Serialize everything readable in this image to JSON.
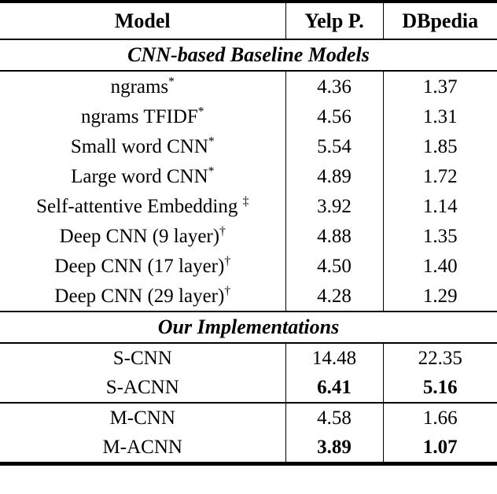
{
  "page": {
    "background_color": "#ffffff",
    "text_color": "#000000",
    "rule_color": "#000000"
  },
  "header": {
    "model": "Model",
    "yelp": "Yelp P.",
    "dbpedia": "DBpedia"
  },
  "sections": {
    "baselines": "CNN-based Baseline Models",
    "ours": "Our Implementations"
  },
  "rows": [
    {
      "model": "ngrams",
      "marker": "*",
      "yelp": "4.36",
      "dbpedia": "1.37",
      "bold_values": false
    },
    {
      "model": "ngrams TFIDF",
      "marker": "*",
      "yelp": "4.56",
      "dbpedia": "1.31",
      "bold_values": false
    },
    {
      "model": "Small word CNN",
      "marker": "*",
      "yelp": "5.54",
      "dbpedia": "1.85",
      "bold_values": false
    },
    {
      "model": "Large word CNN",
      "marker": "*",
      "yelp": "4.89",
      "dbpedia": "1.72",
      "bold_values": false
    },
    {
      "model": "Self-attentive Embedding ",
      "marker": "‡",
      "yelp": "3.92",
      "dbpedia": "1.14",
      "bold_values": false
    },
    {
      "model": "Deep CNN (9 layer)",
      "marker": "†",
      "yelp": "4.88",
      "dbpedia": "1.35",
      "bold_values": false
    },
    {
      "model": "Deep CNN (17 layer)",
      "marker": "†",
      "yelp": "4.50",
      "dbpedia": "1.40",
      "bold_values": false
    },
    {
      "model": "Deep CNN (29 layer)",
      "marker": "†",
      "yelp": "4.28",
      "dbpedia": "1.29",
      "bold_values": false
    },
    {
      "model": "S-CNN",
      "marker": "",
      "yelp": "14.48",
      "dbpedia": "22.35",
      "bold_values": false
    },
    {
      "model": "S-ACNN",
      "marker": "",
      "yelp": "6.41",
      "dbpedia": "5.16",
      "bold_values": true
    },
    {
      "model": "M-CNN",
      "marker": "",
      "yelp": "4.58",
      "dbpedia": "1.66",
      "bold_values": false
    },
    {
      "model": "M-ACNN",
      "marker": "",
      "yelp": "3.89",
      "dbpedia": "1.07",
      "bold_values": true
    }
  ]
}
